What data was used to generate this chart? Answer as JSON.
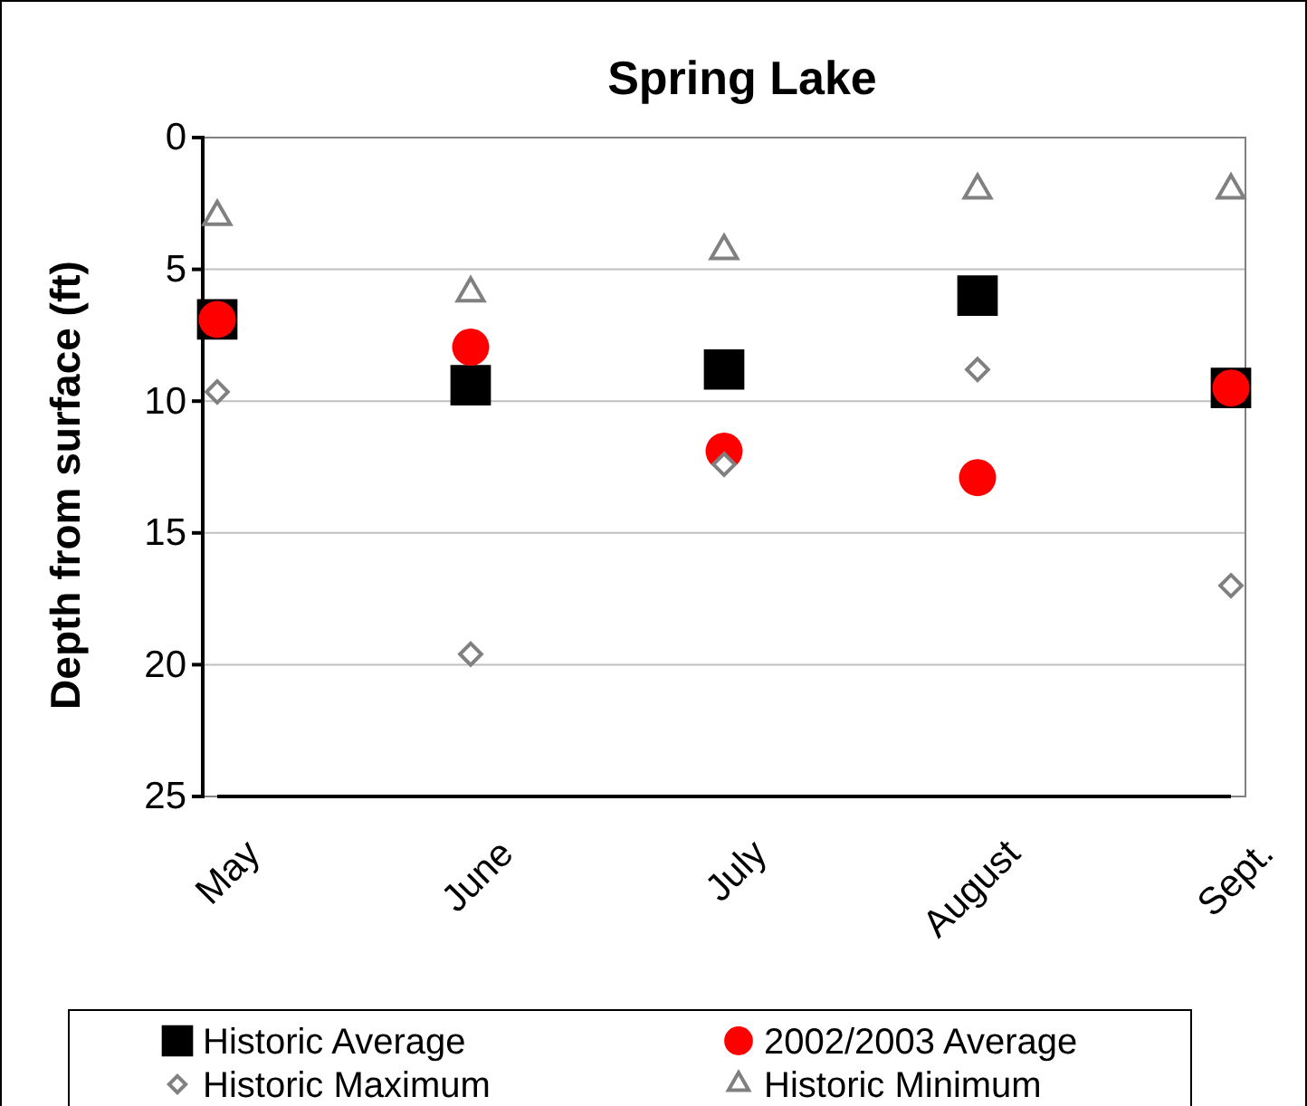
{
  "chart_data": {
    "type": "scatter",
    "title": "Spring Lake",
    "ylabel": "Depth from surface (ft)",
    "categories": [
      "May",
      "June",
      "July",
      "August",
      "Sept."
    ],
    "ylim": [
      25,
      0
    ],
    "yticks": [
      0,
      5,
      10,
      15,
      20,
      25
    ],
    "grid": "y",
    "legend": "bottom",
    "series": [
      {
        "name": "Historic Average",
        "color": "#000000",
        "marker": "square",
        "values": [
          6.9,
          9.4,
          8.8,
          6.0,
          9.5
        ]
      },
      {
        "name": "2002/2003 Average",
        "color": "#ff0000",
        "marker": "circle",
        "values": [
          6.9,
          7.95,
          11.9,
          12.9,
          9.5
        ]
      },
      {
        "name": "Historic Maximum",
        "color": "#808080",
        "marker": "diamond",
        "values": [
          9.65,
          19.6,
          12.4,
          8.8,
          17.0
        ]
      },
      {
        "name": "Historic Minimum",
        "color": "#808080",
        "marker": "triangle",
        "values": [
          3.0,
          5.9,
          4.3,
          2.0,
          2.0
        ]
      }
    ]
  }
}
